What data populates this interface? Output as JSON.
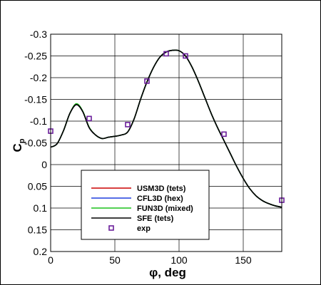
{
  "chart_data": {
    "type": "line",
    "xlabel": "φ, deg",
    "ylabel": "C",
    "ylabel_subscript": "p",
    "xlim": [
      0,
      180
    ],
    "ylim": [
      0.2,
      -0.3
    ],
    "y_reversed": true,
    "grid": true,
    "legend_position": "lower-left",
    "x_ticks": [
      0,
      50,
      100,
      150
    ],
    "x_tick_labels": [
      "0",
      "50",
      "100",
      "150"
    ],
    "y_ticks": [
      -0.3,
      -0.25,
      -0.2,
      -0.15,
      -0.1,
      -0.05,
      0,
      0.05,
      0.1,
      0.15,
      0.2
    ],
    "y_tick_labels": [
      "-0.3",
      "-0.25",
      "-0.2",
      "-0.15",
      "-0.1",
      "-0.05",
      "0",
      "0.05",
      "0.1",
      "0.15",
      "0.2"
    ],
    "series": [
      {
        "name": "USM3D (tets)",
        "color": "#cc0000",
        "x": [
          0,
          5,
          10,
          15,
          20,
          25,
          30,
          35,
          40,
          45,
          50,
          55,
          60,
          65,
          70,
          75,
          80,
          85,
          90,
          95,
          100,
          105,
          110,
          115,
          120,
          125,
          130,
          135,
          140,
          145,
          150,
          155,
          160,
          165,
          170,
          175,
          180
        ],
        "y": [
          -0.04,
          -0.048,
          -0.078,
          -0.118,
          -0.138,
          -0.122,
          -0.085,
          -0.068,
          -0.06,
          -0.063,
          -0.065,
          -0.068,
          -0.075,
          -0.105,
          -0.15,
          -0.19,
          -0.223,
          -0.247,
          -0.259,
          -0.263,
          -0.262,
          -0.25,
          -0.225,
          -0.192,
          -0.155,
          -0.118,
          -0.085,
          -0.055,
          -0.025,
          0.005,
          0.032,
          0.055,
          0.072,
          0.083,
          0.09,
          0.095,
          0.098
        ]
      },
      {
        "name": "CFL3D (hex)",
        "color": "#1f3fdd",
        "x": [
          0,
          5,
          10,
          15,
          20,
          25,
          30,
          35,
          40,
          45,
          50,
          55,
          60,
          65,
          70,
          75,
          80,
          85,
          90,
          95,
          100,
          105,
          110,
          115,
          120,
          125,
          130,
          135,
          140,
          145,
          150,
          155,
          160,
          165,
          170,
          175,
          180
        ],
        "y": [
          -0.04,
          -0.048,
          -0.078,
          -0.118,
          -0.138,
          -0.122,
          -0.085,
          -0.068,
          -0.06,
          -0.063,
          -0.065,
          -0.068,
          -0.075,
          -0.105,
          -0.15,
          -0.19,
          -0.223,
          -0.247,
          -0.259,
          -0.263,
          -0.262,
          -0.25,
          -0.225,
          -0.192,
          -0.155,
          -0.118,
          -0.085,
          -0.055,
          -0.025,
          0.005,
          0.032,
          0.055,
          0.072,
          0.083,
          0.09,
          0.095,
          0.098
        ]
      },
      {
        "name": "FUN3D (mixed)",
        "color": "#1cc01c",
        "x": [
          0,
          5,
          10,
          15,
          20,
          25,
          30,
          35,
          40,
          45,
          50,
          55,
          60,
          65,
          70,
          75,
          80,
          85,
          90,
          95,
          100,
          105,
          110,
          115,
          120,
          125,
          130,
          135,
          140,
          145,
          150,
          155,
          160,
          165,
          170,
          175,
          180
        ],
        "y": [
          -0.04,
          -0.048,
          -0.078,
          -0.118,
          -0.14,
          -0.123,
          -0.086,
          -0.068,
          -0.06,
          -0.063,
          -0.065,
          -0.068,
          -0.075,
          -0.105,
          -0.15,
          -0.19,
          -0.223,
          -0.247,
          -0.259,
          -0.263,
          -0.262,
          -0.25,
          -0.225,
          -0.192,
          -0.155,
          -0.118,
          -0.085,
          -0.055,
          -0.025,
          0.005,
          0.032,
          0.055,
          0.072,
          0.083,
          0.09,
          0.095,
          0.098
        ]
      },
      {
        "name": "SFE (tets)",
        "color": "#000000",
        "x": [
          0,
          5,
          10,
          15,
          20,
          25,
          30,
          35,
          40,
          45,
          50,
          55,
          60,
          65,
          70,
          75,
          80,
          85,
          90,
          95,
          100,
          105,
          110,
          115,
          120,
          125,
          130,
          135,
          140,
          145,
          150,
          155,
          160,
          165,
          170,
          175,
          180
        ],
        "y": [
          -0.04,
          -0.048,
          -0.078,
          -0.118,
          -0.138,
          -0.122,
          -0.085,
          -0.068,
          -0.06,
          -0.063,
          -0.065,
          -0.068,
          -0.075,
          -0.105,
          -0.15,
          -0.19,
          -0.223,
          -0.247,
          -0.259,
          -0.263,
          -0.262,
          -0.25,
          -0.225,
          -0.192,
          -0.155,
          -0.118,
          -0.085,
          -0.055,
          -0.025,
          0.005,
          0.032,
          0.055,
          0.072,
          0.083,
          0.09,
          0.095,
          0.098
        ]
      }
    ],
    "markers": {
      "name": "exp",
      "color": "#6a1e9a",
      "x": [
        0,
        30,
        60,
        75,
        90,
        105,
        135,
        180
      ],
      "y": [
        -0.077,
        -0.106,
        -0.092,
        -0.192,
        -0.255,
        -0.25,
        -0.07,
        0.082
      ]
    }
  }
}
